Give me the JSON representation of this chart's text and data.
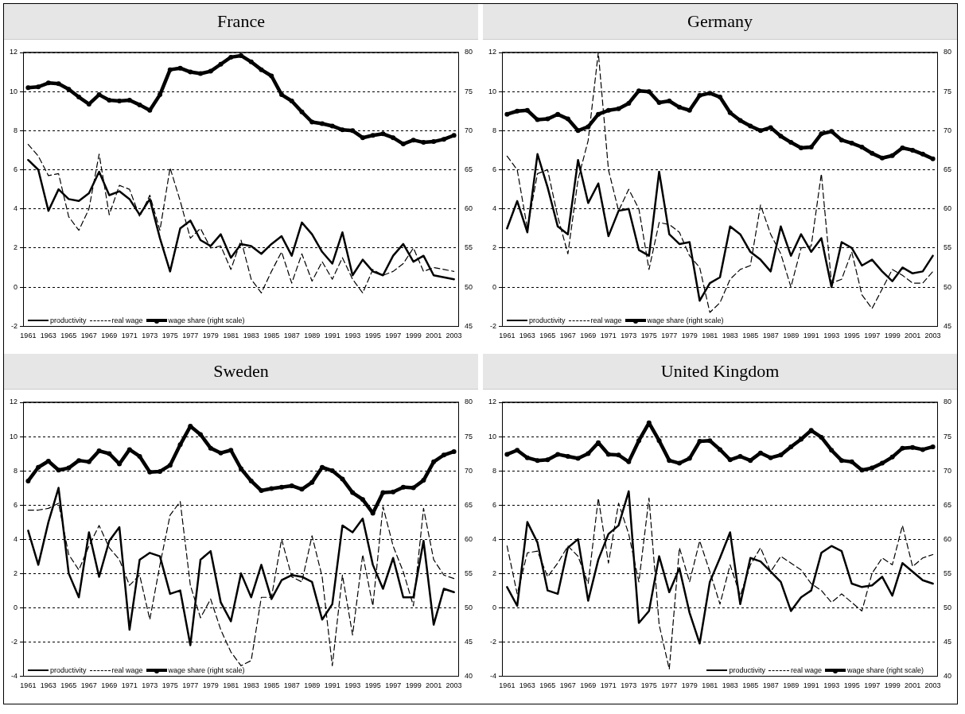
{
  "chart_data": [
    {
      "type": "line",
      "title": "France",
      "categories": [
        "1961",
        null,
        "1963",
        null,
        "1965",
        null,
        "1967",
        null,
        "1969",
        null,
        "1971",
        null,
        "1973",
        null,
        "1975",
        null,
        "1977",
        null,
        "1979",
        null,
        "1981",
        null,
        "1983",
        null,
        "1985",
        null,
        "1987",
        null,
        "1989",
        null,
        "1991",
        null,
        "1993",
        null,
        "1995",
        null,
        "1997",
        null,
        "1999",
        null,
        "2001",
        null,
        "2003"
      ],
      "ylim": [
        -2,
        12
      ],
      "yticks": [
        -2,
        0,
        2,
        4,
        6,
        8,
        10,
        12
      ],
      "y2lim": [
        45,
        80
      ],
      "y2ticks": [
        45,
        50,
        55,
        60,
        65,
        70,
        75,
        80
      ],
      "grid": "y",
      "legend": "bottom left",
      "series": [
        {
          "name": "productivity",
          "color": "#000000",
          "line_style": "solid",
          "marker": "none",
          "values": [
            6.5,
            6.0,
            3.9,
            5.0,
            4.5,
            4.4,
            4.8,
            5.9,
            4.7,
            4.9,
            4.5,
            3.7,
            4.5,
            2.5,
            0.8,
            3.0,
            3.4,
            2.4,
            2.1,
            2.7,
            1.5,
            2.2,
            2.1,
            1.7,
            2.2,
            2.6,
            1.6,
            3.3,
            2.7,
            1.8,
            1.2,
            2.8,
            0.6,
            1.4,
            0.8,
            0.6,
            1.6,
            2.2,
            1.3,
            1.6,
            0.6,
            0.5,
            0.4
          ]
        },
        {
          "name": "real wage",
          "color": "#000000",
          "line_style": "dashed",
          "marker": "none",
          "values": [
            7.3,
            6.7,
            5.7,
            5.8,
            3.6,
            2.9,
            4.0,
            6.8,
            3.7,
            5.2,
            5.0,
            3.6,
            4.7,
            2.9,
            6.1,
            4.4,
            2.5,
            3.0,
            2.0,
            2.1,
            0.9,
            2.4,
            0.4,
            -0.3,
            0.8,
            1.8,
            0.2,
            1.7,
            0.3,
            1.3,
            0.4,
            1.5,
            0.4,
            -0.3,
            0.9,
            0.6,
            0.8,
            1.2,
            2.0,
            0.8,
            1.0,
            0.9,
            0.8
          ]
        },
        {
          "name": "wage share (right scale)",
          "color": "#000000",
          "line_style": "solid",
          "marker": "circle",
          "axis": "y2",
          "values": [
            75.5,
            75.6,
            76.1,
            76.0,
            75.3,
            74.3,
            73.4,
            74.6,
            73.9,
            73.8,
            73.9,
            73.3,
            72.6,
            74.6,
            77.8,
            78.0,
            77.5,
            77.3,
            77.6,
            78.5,
            79.4,
            79.6,
            78.8,
            77.8,
            77.0,
            74.6,
            73.8,
            72.4,
            71.1,
            70.9,
            70.6,
            70.1,
            70.0,
            69.1,
            69.4,
            69.6,
            69.1,
            68.3,
            68.8,
            68.5,
            68.6,
            68.9,
            69.4
          ]
        }
      ]
    },
    {
      "type": "line",
      "title": "Germany",
      "categories": [
        "1961",
        null,
        "1963",
        null,
        "1965",
        null,
        "1967",
        null,
        "1969",
        null,
        "1971",
        null,
        "1973",
        null,
        "1975",
        null,
        "1977",
        null,
        "1979",
        null,
        "1981",
        null,
        "1983",
        null,
        "1985",
        null,
        "1987",
        null,
        "1989",
        null,
        "1991",
        null,
        "1993",
        null,
        "1995",
        null,
        "1997",
        null,
        "1999",
        null,
        "2001",
        null,
        "2003"
      ],
      "ylim": [
        -2,
        12
      ],
      "yticks": [
        -2,
        0,
        2,
        4,
        6,
        8,
        10,
        12
      ],
      "y2lim": [
        45,
        80
      ],
      "y2ticks": [
        45,
        50,
        55,
        60,
        65,
        70,
        75,
        80
      ],
      "grid": "y",
      "legend": "bottom left",
      "series": [
        {
          "name": "productivity",
          "color": "#000000",
          "line_style": "solid",
          "marker": "none",
          "values": [
            3.0,
            4.4,
            2.8,
            6.8,
            5.1,
            3.1,
            2.7,
            6.5,
            4.3,
            5.3,
            2.6,
            3.9,
            4.0,
            1.9,
            1.6,
            5.9,
            2.7,
            2.2,
            2.3,
            -0.7,
            0.2,
            0.5,
            3.1,
            2.7,
            1.8,
            1.4,
            0.8,
            3.1,
            1.6,
            2.7,
            1.8,
            2.5,
            0.0,
            2.3,
            2.0,
            1.1,
            1.4,
            0.8,
            0.3,
            1.0,
            0.7,
            0.8,
            1.6
          ]
        },
        {
          "name": "real wage",
          "color": "#000000",
          "line_style": "dashed",
          "marker": "none",
          "values": [
            6.7,
            6.0,
            3.0,
            5.8,
            6.0,
            3.6,
            1.7,
            5.5,
            7.5,
            12.0,
            6.0,
            3.9,
            5.0,
            4.0,
            0.9,
            3.3,
            3.2,
            2.8,
            1.6,
            1.0,
            -1.3,
            -0.8,
            0.4,
            0.9,
            1.1,
            4.2,
            2.7,
            1.7,
            0.0,
            2.0,
            2.1,
            5.8,
            0.2,
            0.4,
            1.8,
            -0.4,
            -1.1,
            -0.1,
            0.9,
            0.6,
            0.2,
            0.2,
            0.8
          ]
        },
        {
          "name": "wage share (right scale)",
          "color": "#000000",
          "line_style": "solid",
          "marker": "circle",
          "axis": "y2",
          "values": [
            72.1,
            72.5,
            72.6,
            71.4,
            71.5,
            72.1,
            71.5,
            70.0,
            70.5,
            72.1,
            72.6,
            72.8,
            73.5,
            75.1,
            75.0,
            73.6,
            73.8,
            73.0,
            72.6,
            74.5,
            74.8,
            74.3,
            72.3,
            71.3,
            70.6,
            70.0,
            70.4,
            69.3,
            68.5,
            67.8,
            67.9,
            69.6,
            69.9,
            68.8,
            68.4,
            67.9,
            67.1,
            66.5,
            66.8,
            67.8,
            67.5,
            67.0,
            66.4
          ]
        }
      ]
    },
    {
      "type": "line",
      "title": "Sweden",
      "categories": [
        "1961",
        null,
        "1963",
        null,
        "1965",
        null,
        "1967",
        null,
        "1969",
        null,
        "1971",
        null,
        "1973",
        null,
        "1975",
        null,
        "1977",
        null,
        "1979",
        null,
        "1981",
        null,
        "1983",
        null,
        "1985",
        null,
        "1987",
        null,
        "1989",
        null,
        "1991",
        null,
        "1993",
        null,
        "1995",
        null,
        "1997",
        null,
        "1999",
        null,
        "2001",
        null,
        "2003"
      ],
      "ylim": [
        -4,
        12
      ],
      "yticks": [
        -4,
        -2,
        0,
        2,
        4,
        6,
        8,
        10,
        12
      ],
      "y2lim": [
        40,
        80
      ],
      "y2ticks": [
        40,
        45,
        50,
        55,
        60,
        65,
        70,
        75,
        80
      ],
      "grid": "y",
      "legend": "bottom left",
      "series": [
        {
          "name": "productivity",
          "color": "#000000",
          "line_style": "solid",
          "marker": "none",
          "values": [
            4.5,
            2.5,
            5.0,
            7.0,
            2.0,
            0.6,
            4.4,
            1.8,
            3.9,
            4.7,
            -1.3,
            2.8,
            3.2,
            3.0,
            0.8,
            1.0,
            -2.2,
            2.8,
            3.3,
            0.3,
            -0.8,
            2.0,
            0.6,
            2.5,
            0.5,
            1.6,
            1.9,
            1.8,
            1.5,
            -0.7,
            0.2,
            4.8,
            4.4,
            5.2,
            2.5,
            1.1,
            2.9,
            0.6,
            0.6,
            3.9,
            -1.0,
            1.1,
            0.9
          ]
        },
        {
          "name": "real wage",
          "color": "#000000",
          "line_style": "dashed",
          "marker": "none",
          "values": [
            5.7,
            5.7,
            5.8,
            6.1,
            3.1,
            2.2,
            3.6,
            4.8,
            3.5,
            2.8,
            1.3,
            1.9,
            -0.7,
            2.5,
            5.4,
            6.2,
            1.3,
            -0.6,
            0.5,
            -1.3,
            -2.6,
            -3.4,
            -3.1,
            0.6,
            0.6,
            4.0,
            1.8,
            1.5,
            4.2,
            1.8,
            -3.4,
            1.9,
            -1.6,
            3.1,
            0.1,
            5.9,
            3.6,
            2.1,
            0.1,
            5.8,
            2.8,
            1.9,
            1.7
          ]
        },
        {
          "name": "wage share (right scale)",
          "color": "#000000",
          "line_style": "solid",
          "marker": "circle",
          "axis": "y2",
          "values": [
            68.5,
            70.5,
            71.4,
            70.1,
            70.4,
            71.5,
            71.3,
            72.9,
            72.5,
            71.0,
            73.1,
            72.1,
            69.8,
            69.9,
            70.8,
            73.8,
            76.5,
            75.3,
            73.3,
            72.6,
            73.0,
            70.3,
            68.5,
            67.1,
            67.4,
            67.6,
            67.8,
            67.3,
            68.3,
            70.5,
            70.0,
            68.8,
            66.8,
            65.8,
            63.8,
            66.8,
            66.9,
            67.6,
            67.5,
            68.6,
            71.3,
            72.3,
            72.8
          ]
        }
      ]
    },
    {
      "type": "line",
      "title": "United Kingdom",
      "categories": [
        "1961",
        null,
        "1963",
        null,
        "1965",
        null,
        "1967",
        null,
        "1969",
        null,
        "1971",
        null,
        "1973",
        null,
        "1975",
        null,
        "1977",
        null,
        "1979",
        null,
        "1981",
        null,
        "1983",
        null,
        "1985",
        null,
        "1987",
        null,
        "1989",
        null,
        "1991",
        null,
        "1993",
        null,
        "1995",
        null,
        "1997",
        null,
        "1999",
        null,
        "2001",
        null,
        "2003"
      ],
      "ylim": [
        -4,
        12
      ],
      "yticks": [
        -4,
        -2,
        0,
        2,
        4,
        6,
        8,
        10,
        12
      ],
      "y2lim": [
        40,
        80
      ],
      "y2ticks": [
        40,
        45,
        50,
        55,
        60,
        65,
        70,
        75,
        80
      ],
      "grid": "y",
      "legend": "bottom right",
      "series": [
        {
          "name": "productivity",
          "color": "#000000",
          "line_style": "solid",
          "marker": "none",
          "values": [
            1.2,
            0.1,
            5.0,
            3.8,
            1.0,
            0.8,
            3.5,
            4.0,
            0.4,
            2.8,
            4.3,
            4.8,
            6.8,
            -0.9,
            -0.2,
            3.0,
            0.9,
            2.3,
            -0.3,
            -2.1,
            1.5,
            2.9,
            4.4,
            0.2,
            2.9,
            2.7,
            2.1,
            1.5,
            -0.2,
            0.6,
            1.0,
            3.2,
            3.6,
            3.3,
            1.4,
            1.2,
            1.3,
            1.8,
            0.7,
            2.6,
            2.1,
            1.6,
            1.4
          ]
        },
        {
          "name": "real wage",
          "color": "#000000",
          "line_style": "dashed",
          "marker": "none",
          "values": [
            3.6,
            0.8,
            3.2,
            3.3,
            1.8,
            2.6,
            3.6,
            3.0,
            1.4,
            6.4,
            2.6,
            6.1,
            4.3,
            1.5,
            6.4,
            -1.0,
            -3.6,
            3.5,
            1.5,
            3.9,
            2.1,
            0.2,
            2.5,
            0.7,
            2.5,
            3.5,
            2.1,
            3.0,
            2.6,
            2.2,
            1.4,
            1.0,
            0.3,
            0.8,
            0.3,
            -0.2,
            2.0,
            2.9,
            2.5,
            4.8,
            2.4,
            2.9,
            3.1
          ]
        },
        {
          "name": "wage share (right scale)",
          "color": "#000000",
          "line_style": "solid",
          "marker": "circle",
          "axis": "y2",
          "values": [
            72.4,
            73.0,
            71.9,
            71.5,
            71.6,
            72.4,
            72.1,
            71.8,
            72.5,
            74.1,
            72.4,
            72.3,
            71.3,
            74.4,
            77.0,
            74.4,
            71.5,
            71.1,
            71.8,
            74.3,
            74.4,
            73.1,
            71.6,
            72.1,
            71.5,
            72.6,
            71.9,
            72.3,
            73.5,
            74.6,
            75.9,
            74.9,
            73.0,
            71.5,
            71.3,
            70.1,
            70.4,
            71.1,
            72.0,
            73.3,
            73.4,
            73.1,
            73.5
          ]
        }
      ]
    }
  ]
}
